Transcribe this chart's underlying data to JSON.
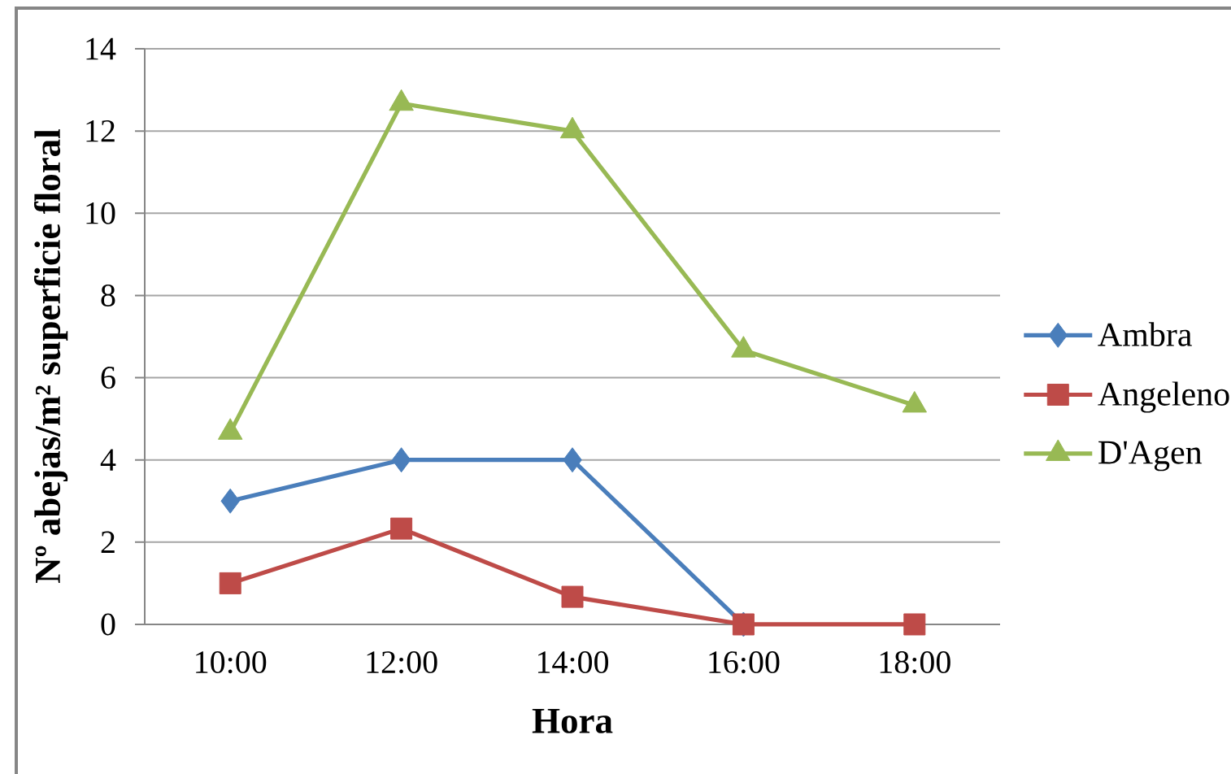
{
  "chart_data": {
    "type": "line",
    "xlabel": "Hora",
    "ylabel": "Nº abejas/m² superficie floral",
    "categories": [
      "10:00",
      "12:00",
      "14:00",
      "16:00",
      "18:00"
    ],
    "series": [
      {
        "name": "Ambra",
        "color": "#4a7ebb",
        "marker": "diamond",
        "values": [
          3,
          4,
          4,
          0,
          null
        ]
      },
      {
        "name": "Angeleno",
        "color": "#be4b48",
        "marker": "square",
        "values": [
          1,
          2.33,
          0.67,
          0,
          0
        ]
      },
      {
        "name": "D'Agen",
        "color": "#98b954",
        "marker": "triangle",
        "values": [
          4.67,
          12.67,
          12,
          6.67,
          5.33
        ]
      }
    ],
    "ylim": [
      0,
      14
    ],
    "yticks": [
      0,
      2,
      4,
      6,
      8,
      10,
      12,
      14
    ],
    "grid": "y",
    "legend": "right",
    "line_style": "solid"
  }
}
